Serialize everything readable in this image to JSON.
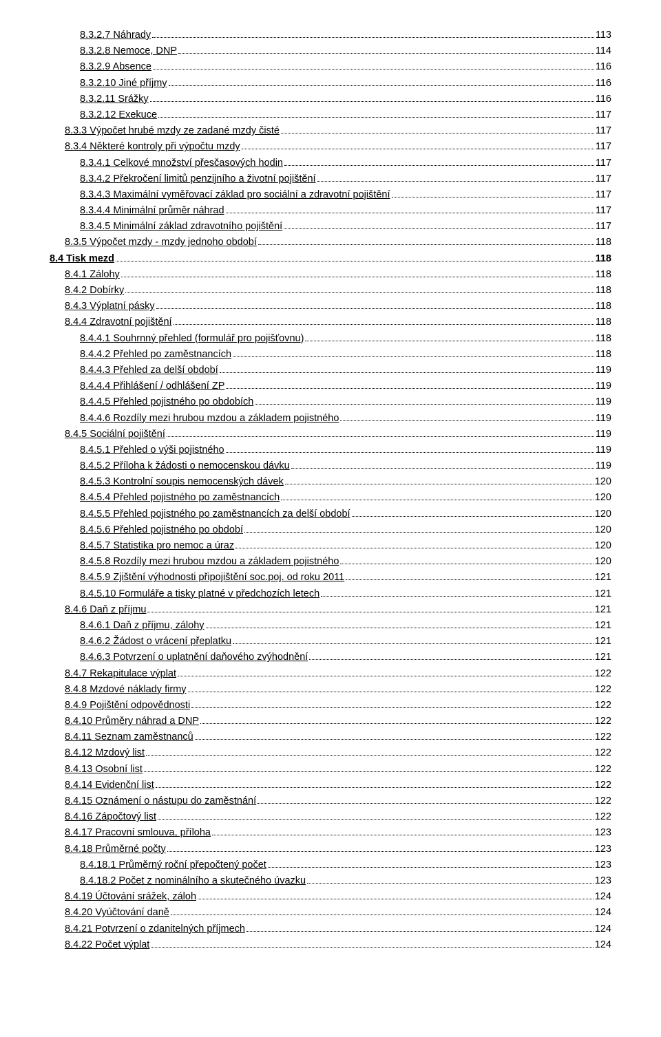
{
  "entries": [
    {
      "indent": 3,
      "num": "8.3.2.7",
      "title": "Náhrady",
      "page": "113",
      "bold": false
    },
    {
      "indent": 3,
      "num": "8.3.2.8",
      "title": "Nemoce, DNP",
      "page": "114",
      "bold": false
    },
    {
      "indent": 3,
      "num": "8.3.2.9",
      "title": "Absence",
      "page": "116",
      "bold": false
    },
    {
      "indent": 3,
      "num": "8.3.2.10",
      "title": "Jiné příjmy",
      "page": "116",
      "bold": false
    },
    {
      "indent": 3,
      "num": "8.3.2.11",
      "title": "Srážky",
      "page": "116",
      "bold": false
    },
    {
      "indent": 3,
      "num": "8.3.2.12",
      "title": "Exekuce",
      "page": "117",
      "bold": false
    },
    {
      "indent": 2,
      "num": "8.3.3",
      "title": "Výpočet hrubé mzdy ze zadané mzdy čisté",
      "page": "117",
      "bold": false
    },
    {
      "indent": 2,
      "num": "8.3.4",
      "title": "Některé kontroly při výpočtu mzdy",
      "page": "117",
      "bold": false
    },
    {
      "indent": 3,
      "num": "8.3.4.1",
      "title": "Celkové množství přesčasových hodin",
      "page": "117",
      "bold": false
    },
    {
      "indent": 3,
      "num": "8.3.4.2",
      "title": "Překročení limitů penzijního a životní pojištění",
      "page": "117",
      "bold": false
    },
    {
      "indent": 3,
      "num": "8.3.4.3",
      "title": "Maximální vyměřovací základ pro sociální a zdravotní pojištění",
      "page": "117",
      "bold": false
    },
    {
      "indent": 3,
      "num": "8.3.4.4",
      "title": "Minimální průměr náhrad",
      "page": "117",
      "bold": false
    },
    {
      "indent": 3,
      "num": "8.3.4.5",
      "title": "Minimální základ zdravotního pojištění",
      "page": "117",
      "bold": false
    },
    {
      "indent": 2,
      "num": "8.3.5",
      "title": "Výpočet mzdy - mzdy jednoho období",
      "page": "118",
      "bold": false
    },
    {
      "indent": 1,
      "num": "8.4",
      "title": "Tisk mezd",
      "page": "118",
      "bold": true
    },
    {
      "indent": 2,
      "num": "8.4.1",
      "title": "Zálohy",
      "page": "118",
      "bold": false
    },
    {
      "indent": 2,
      "num": "8.4.2",
      "title": "Dobírky",
      "page": "118",
      "bold": false
    },
    {
      "indent": 2,
      "num": "8.4.3",
      "title": "Výplatní pásky",
      "page": "118",
      "bold": false
    },
    {
      "indent": 2,
      "num": "8.4.4",
      "title": "Zdravotní pojištění",
      "page": "118",
      "bold": false
    },
    {
      "indent": 3,
      "num": "8.4.4.1",
      "title": "Souhrnný přehled (formulář pro pojišťovnu)",
      "page": "118",
      "bold": false
    },
    {
      "indent": 3,
      "num": "8.4.4.2",
      "title": "Přehled po zaměstnancích",
      "page": "118",
      "bold": false
    },
    {
      "indent": 3,
      "num": "8.4.4.3",
      "title": "Přehled za delší období",
      "page": "119",
      "bold": false
    },
    {
      "indent": 3,
      "num": "8.4.4.4",
      "title": "Přihlášení / odhlášení ZP",
      "page": "119",
      "bold": false
    },
    {
      "indent": 3,
      "num": "8.4.4.5",
      "title": "Přehled pojistného po obdobích",
      "page": "119",
      "bold": false
    },
    {
      "indent": 3,
      "num": "8.4.4.6",
      "title": "Rozdíly mezi hrubou mzdou a základem pojistného",
      "page": "119",
      "bold": false
    },
    {
      "indent": 2,
      "num": "8.4.5",
      "title": "Sociální pojištění",
      "page": "119",
      "bold": false
    },
    {
      "indent": 3,
      "num": "8.4.5.1",
      "title": "Přehled o výši pojistného",
      "page": "119",
      "bold": false
    },
    {
      "indent": 3,
      "num": "8.4.5.2",
      "title": "Příloha k žádosti o nemocenskou dávku",
      "page": "119",
      "bold": false
    },
    {
      "indent": 3,
      "num": "8.4.5.3",
      "title": "Kontrolní soupis nemocenských dávek",
      "page": "120",
      "bold": false
    },
    {
      "indent": 3,
      "num": "8.4.5.4",
      "title": "Přehled pojistného po zaměstnancích",
      "page": "120",
      "bold": false
    },
    {
      "indent": 3,
      "num": "8.4.5.5",
      "title": "Přehled pojistného po zaměstnancích za delší období",
      "page": "120",
      "bold": false
    },
    {
      "indent": 3,
      "num": "8.4.5.6",
      "title": "Přehled pojistného po období",
      "page": "120",
      "bold": false
    },
    {
      "indent": 3,
      "num": "8.4.5.7",
      "title": "Statistika pro nemoc a úraz",
      "page": "120",
      "bold": false
    },
    {
      "indent": 3,
      "num": "8.4.5.8",
      "title": "Rozdíly mezi hrubou mzdou a základem pojistného",
      "page": "120",
      "bold": false
    },
    {
      "indent": 3,
      "num": "8.4.5.9",
      "title": "Zjištění výhodnosti připojištění soc.poj. od roku 2011",
      "page": "121",
      "bold": false
    },
    {
      "indent": 3,
      "num": "8.4.5.10",
      "title": "Formuláře a tisky platné v předchozích letech",
      "page": "121",
      "bold": false
    },
    {
      "indent": 2,
      "num": "8.4.6",
      "title": "Daň z příjmu",
      "page": "121",
      "bold": false
    },
    {
      "indent": 3,
      "num": "8.4.6.1",
      "title": "Daň z příjmu, zálohy",
      "page": "121",
      "bold": false
    },
    {
      "indent": 3,
      "num": "8.4.6.2",
      "title": "Žádost o vrácení přeplatku",
      "page": "121",
      "bold": false
    },
    {
      "indent": 3,
      "num": "8.4.6.3",
      "title": "Potvrzení o uplatnění daňového zvýhodnění",
      "page": "121",
      "bold": false
    },
    {
      "indent": 2,
      "num": "8.4.7",
      "title": "Rekapitulace výplat",
      "page": "122",
      "bold": false
    },
    {
      "indent": 2,
      "num": "8.4.8",
      "title": "Mzdové náklady firmy",
      "page": "122",
      "bold": false
    },
    {
      "indent": 2,
      "num": "8.4.9",
      "title": "Pojištění odpovědnosti",
      "page": "122",
      "bold": false
    },
    {
      "indent": 2,
      "num": "8.4.10",
      "title": "Průměry náhrad a DNP",
      "page": "122",
      "bold": false
    },
    {
      "indent": 2,
      "num": "8.4.11",
      "title": "Seznam zaměstnanců",
      "page": "122",
      "bold": false
    },
    {
      "indent": 2,
      "num": "8.4.12",
      "title": "Mzdový list",
      "page": "122",
      "bold": false
    },
    {
      "indent": 2,
      "num": "8.4.13",
      "title": "Osobní list",
      "page": "122",
      "bold": false
    },
    {
      "indent": 2,
      "num": "8.4.14",
      "title": "Evidenční list",
      "page": "122",
      "bold": false
    },
    {
      "indent": 2,
      "num": "8.4.15",
      "title": "Oznámení o nástupu do zaměstnání",
      "page": "122",
      "bold": false
    },
    {
      "indent": 2,
      "num": "8.4.16",
      "title": "Zápočtový list",
      "page": "122",
      "bold": false
    },
    {
      "indent": 2,
      "num": "8.4.17",
      "title": "Pracovní smlouva, příloha",
      "page": "123",
      "bold": false
    },
    {
      "indent": 2,
      "num": "8.4.18",
      "title": "Průměrné počty",
      "page": "123",
      "bold": false
    },
    {
      "indent": 3,
      "num": "8.4.18.1",
      "title": "Průměrný roční přepočtený počet",
      "page": "123",
      "bold": false
    },
    {
      "indent": 3,
      "num": "8.4.18.2",
      "title": "Počet z nominálního a skutečného úvazku",
      "page": "123",
      "bold": false
    },
    {
      "indent": 2,
      "num": "8.4.19",
      "title": "Účtování srážek, záloh",
      "page": "124",
      "bold": false
    },
    {
      "indent": 2,
      "num": "8.4.20",
      "title": "Vyúčtování daně",
      "page": "124",
      "bold": false
    },
    {
      "indent": 2,
      "num": "8.4.21",
      "title": "Potvrzení o zdanitelných příjmech",
      "page": "124",
      "bold": false
    },
    {
      "indent": 2,
      "num": "8.4.22",
      "title": "Počet výplat",
      "page": "124",
      "bold": false
    }
  ]
}
